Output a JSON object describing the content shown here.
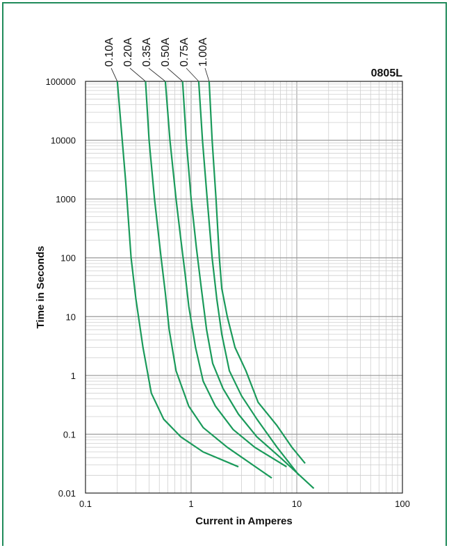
{
  "chart_data": {
    "type": "line",
    "title": "0805L",
    "xlabel": "Current in Amperes",
    "ylabel": "Time in Seconds",
    "x_scale": "log",
    "y_scale": "log",
    "xlim": [
      0.1,
      100
    ],
    "ylim": [
      0.01,
      100000
    ],
    "x_ticks": [
      "0.1",
      "1",
      "10",
      "100"
    ],
    "y_ticks": [
      "100000",
      "10000",
      "1000",
      "100",
      "10",
      "1",
      "0.1",
      "0.01"
    ],
    "grid": true,
    "series_color": "#1a9a5a",
    "series": [
      {
        "name": "0.10A",
        "points": [
          [
            0.2,
            100000
          ],
          [
            0.24,
            2000
          ],
          [
            0.27,
            100
          ],
          [
            0.3,
            20
          ],
          [
            0.35,
            3
          ],
          [
            0.42,
            0.5
          ],
          [
            0.55,
            0.18
          ],
          [
            0.8,
            0.09
          ],
          [
            1.3,
            0.05
          ],
          [
            2.8,
            0.028
          ]
        ]
      },
      {
        "name": "0.20A",
        "points": [
          [
            0.37,
            100000
          ],
          [
            0.4,
            10000
          ],
          [
            0.45,
            1000
          ],
          [
            0.52,
            100
          ],
          [
            0.57,
            25
          ],
          [
            0.62,
            6
          ],
          [
            0.72,
            1.2
          ],
          [
            0.95,
            0.3
          ],
          [
            1.3,
            0.13
          ],
          [
            2.2,
            0.06
          ],
          [
            5.8,
            0.018
          ]
        ]
      },
      {
        "name": "0.35A",
        "points": [
          [
            0.57,
            100000
          ],
          [
            0.63,
            10000
          ],
          [
            0.72,
            1000
          ],
          [
            0.8,
            200
          ],
          [
            0.88,
            50
          ],
          [
            0.95,
            15
          ],
          [
            1.1,
            3
          ],
          [
            1.3,
            0.8
          ],
          [
            1.7,
            0.3
          ],
          [
            2.5,
            0.12
          ],
          [
            4,
            0.06
          ],
          [
            8,
            0.028
          ]
        ]
      },
      {
        "name": "0.50A",
        "points": [
          [
            0.83,
            100000
          ],
          [
            0.9,
            10000
          ],
          [
            1,
            1000
          ],
          [
            1.12,
            150
          ],
          [
            1.25,
            30
          ],
          [
            1.4,
            6
          ],
          [
            1.6,
            1.6
          ],
          [
            2,
            0.6
          ],
          [
            2.8,
            0.22
          ],
          [
            4.2,
            0.09
          ],
          [
            7,
            0.04
          ],
          [
            14.5,
            0.012
          ]
        ]
      },
      {
        "name": "0.75A",
        "points": [
          [
            1.18,
            100000
          ],
          [
            1.28,
            10000
          ],
          [
            1.42,
            1000
          ],
          [
            1.58,
            100
          ],
          [
            1.75,
            20
          ],
          [
            1.95,
            5
          ],
          [
            2.3,
            1.2
          ],
          [
            3,
            0.45
          ],
          [
            4.2,
            0.18
          ],
          [
            6.5,
            0.06
          ],
          [
            10.5,
            0.02
          ]
        ]
      },
      {
        "name": "1.00A",
        "points": [
          [
            1.48,
            100000
          ],
          [
            1.58,
            10000
          ],
          [
            1.72,
            1000
          ],
          [
            1.85,
            100
          ],
          [
            1.95,
            30
          ],
          [
            2.2,
            10
          ],
          [
            2.6,
            3
          ],
          [
            3.3,
            1.2
          ],
          [
            4.3,
            0.35
          ],
          [
            6.5,
            0.14
          ],
          [
            9,
            0.06
          ],
          [
            12,
            0.032
          ]
        ]
      }
    ]
  }
}
